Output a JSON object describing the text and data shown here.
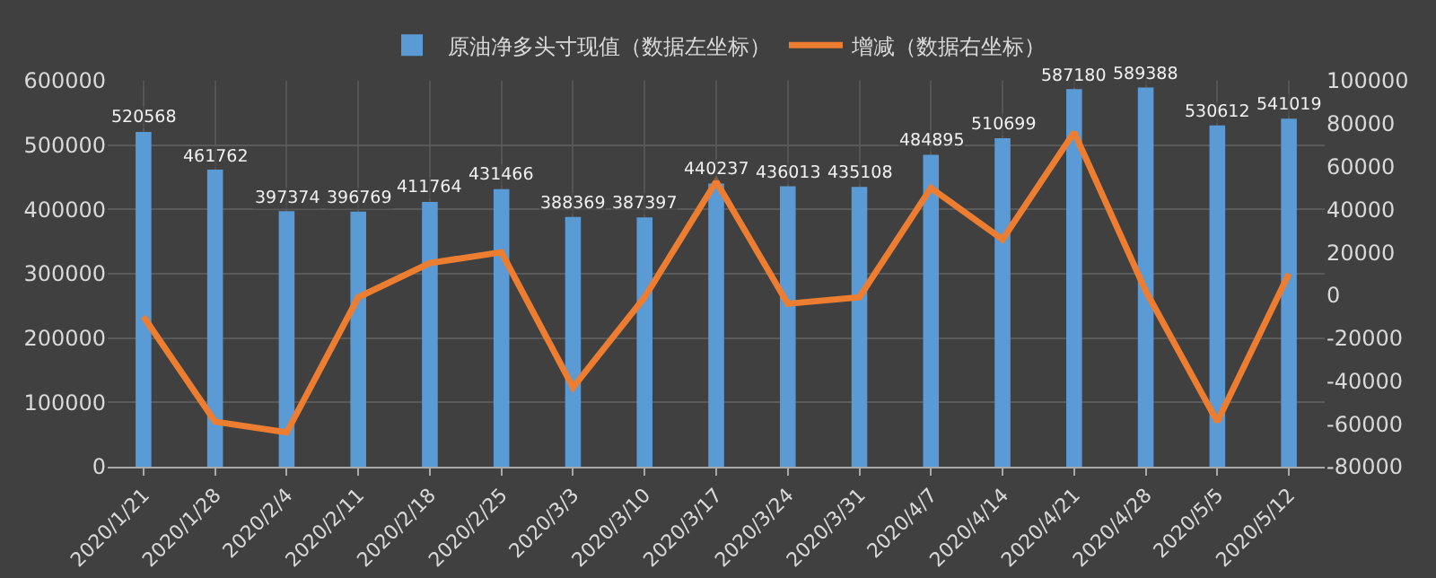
{
  "chart_data": {
    "type": "bar",
    "categories": [
      "2020/1/21",
      "2020/1/28",
      "2020/2/4",
      "2020/2/11",
      "2020/2/18",
      "2020/2/25",
      "2020/3/3",
      "2020/3/10",
      "2020/3/17",
      "2020/3/24",
      "2020/3/31",
      "2020/4/7",
      "2020/4/14",
      "2020/4/21",
      "2020/4/28",
      "2020/5/5",
      "2020/5/12"
    ],
    "series": [
      {
        "name": "原油净多头寸现值（数据左坐标）",
        "color": "#5b9bd5",
        "values": [
          520568,
          461762,
          397374,
          396769,
          411764,
          431466,
          388369,
          387397,
          440237,
          436013,
          435108,
          484895,
          510699,
          587180,
          589388,
          530612,
          541019
        ],
        "data_labels": true
      },
      {
        "name": "增减（数据右坐标）",
        "type": "line",
        "axis": "y2",
        "color": "#ed7d31",
        "values": [
          -10000,
          -59000,
          -64000,
          -1000,
          15000,
          20000,
          -43000,
          -1000,
          53000,
          -4000,
          -1000,
          50000,
          26000,
          76000,
          2000,
          -59000,
          10000
        ]
      }
    ],
    "ylim": [
      0,
      600000
    ],
    "yticks": [
      0,
      100000,
      200000,
      300000,
      400000,
      500000,
      600000
    ],
    "y2lim": [
      -80000,
      100000
    ],
    "y2ticks": [
      -80000,
      -60000,
      -40000,
      -20000,
      0,
      20000,
      40000,
      60000,
      80000,
      100000
    ],
    "grid": true,
    "legend": "top",
    "marker": "none",
    "line_style": "solid"
  }
}
